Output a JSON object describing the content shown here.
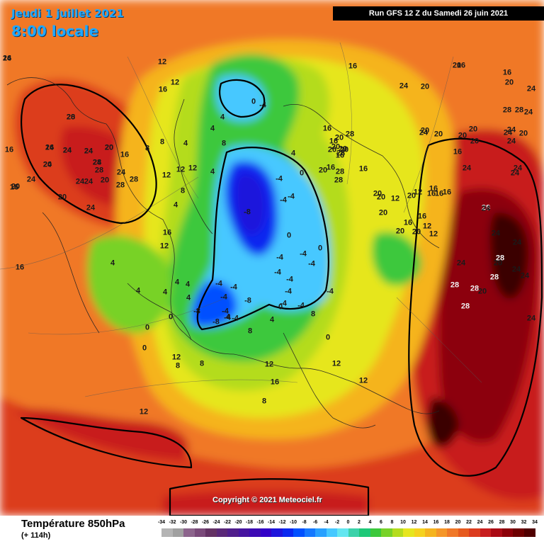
{
  "header": {
    "date_line": "Jeudi 1 juillet 2021",
    "time_line": "8:00 locale",
    "run_info": "Run GFS 12 Z du Samedi 26 juin 2021"
  },
  "copyright": "Copyright © 2021 Meteociel.fr",
  "footer": {
    "title": "Température 850hPa",
    "lead_time": "(+ 114h)"
  },
  "legend": {
    "ticks": [
      "-34",
      "-32",
      "-30",
      "-28",
      "-26",
      "-24",
      "-22",
      "-20",
      "-18",
      "-16",
      "-14",
      "-12",
      "-10",
      "-8",
      "-6",
      "-4",
      "-2",
      "0",
      "2",
      "4",
      "6",
      "8",
      "10",
      "12",
      "14",
      "16",
      "18",
      "20",
      "22",
      "24",
      "26",
      "28",
      "30",
      "32",
      "34"
    ],
    "colors": [
      "#b4b4b4",
      "#a0a0a0",
      "#8c648c",
      "#7a4a7a",
      "#643264",
      "#5a2878",
      "#501e8c",
      "#4614a0",
      "#3c0ab4",
      "#3200c8",
      "#1e14dc",
      "#0a28f0",
      "#0050ff",
      "#1478ff",
      "#28a0ff",
      "#46c8ff",
      "#64e6f0",
      "#3cd2aa",
      "#1ec878",
      "#3cc83c",
      "#78d228",
      "#b4dc1e",
      "#e6e61e",
      "#f5d21e",
      "#f5b41e",
      "#f59628",
      "#f07828",
      "#e65a1e",
      "#dc3c1e",
      "#c81e1e",
      "#aa0a14",
      "#8c0008",
      "#6e0000",
      "#500000"
    ]
  },
  "map": {
    "labels": [
      "24",
      "28",
      "20",
      "16",
      "24",
      "24",
      "28",
      "24",
      "20",
      "24",
      "28",
      "24",
      "20",
      "24",
      "28",
      "28",
      "24",
      "24",
      "20",
      "20",
      "16",
      "16",
      "12",
      "16",
      "16",
      "12",
      "12",
      "12",
      "12",
      "16",
      "12",
      "12",
      "4",
      "0",
      "-4",
      "4",
      "8",
      "4",
      "4",
      "0",
      "-4",
      "8",
      "0",
      "-4",
      "-4",
      "-8",
      "-4",
      "-4",
      "0",
      "-4",
      "-4",
      "-4",
      "-4",
      "-4",
      "-4",
      "-4",
      "-4",
      "-8",
      "-8",
      "-4",
      "0",
      "-4",
      "-4",
      "-4",
      "-8",
      "-4",
      "0",
      "0",
      "4",
      "4",
      "4",
      "4",
      "4",
      "4",
      "4",
      "8",
      "8",
      "8",
      "8",
      "4",
      "4",
      "4",
      "0",
      "0",
      "8",
      "8",
      "12",
      "12",
      "12",
      "8",
      "12",
      "16",
      "16",
      "20",
      "20",
      "16",
      "16",
      "20",
      "20",
      "20",
      "16",
      "12",
      "12",
      "20",
      "12",
      "12",
      "16",
      "20",
      "20",
      "20",
      "20",
      "20",
      "16",
      "16",
      "16",
      "20",
      "24",
      "24",
      "24",
      "28",
      "28",
      "28",
      "28",
      "24",
      "24",
      "24",
      "24",
      "24",
      "24",
      "20",
      "20",
      "24",
      "28",
      "28",
      "28",
      "28",
      "24",
      "24",
      "24",
      "24",
      "24",
      "20",
      "20",
      "20",
      "20",
      "20",
      "20",
      "20",
      "20",
      "24",
      "24",
      "28",
      "28",
      "28",
      "28",
      "20",
      "16",
      "16",
      "16",
      "16",
      "16",
      "16",
      "16",
      "16",
      "20",
      "20",
      "16",
      "16",
      "24",
      "24",
      "24",
      "24"
    ]
  }
}
